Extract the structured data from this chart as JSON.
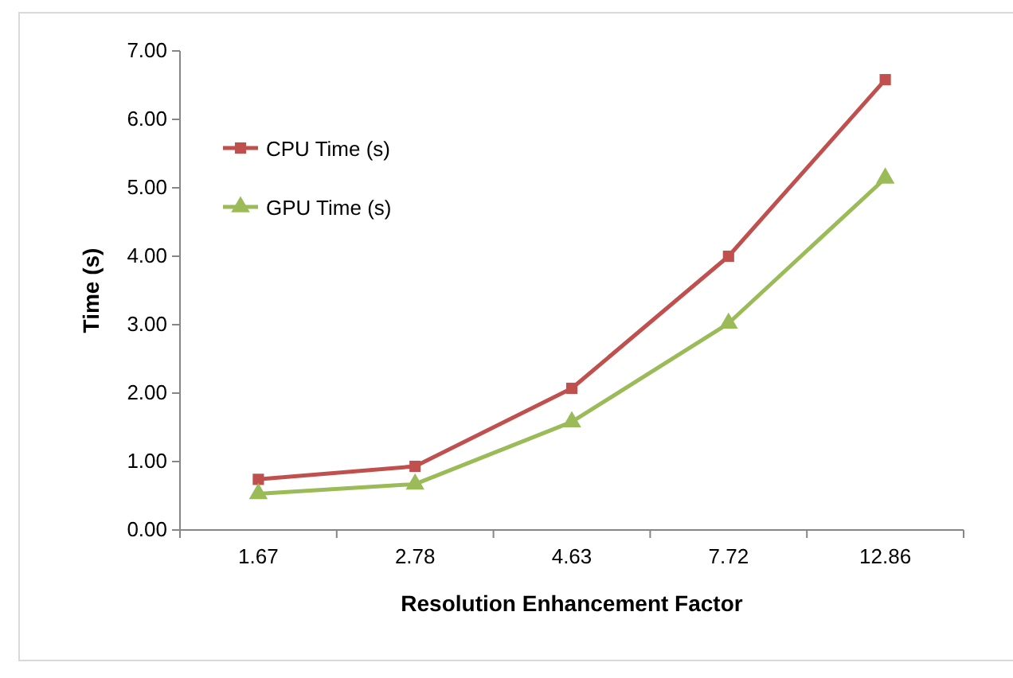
{
  "chart_data": {
    "type": "line",
    "xlabel": "Resolution Enhancement Factor",
    "ylabel": "Time (s)",
    "categories": [
      "1.67",
      "2.78",
      "4.63",
      "7.72",
      "12.86"
    ],
    "ylim": [
      0,
      7
    ],
    "yticks": [
      {
        "value": 0,
        "label": "0.00"
      },
      {
        "value": 1,
        "label": "1.00"
      },
      {
        "value": 2,
        "label": "2.00"
      },
      {
        "value": 3,
        "label": "3.00"
      },
      {
        "value": 4,
        "label": "4.00"
      },
      {
        "value": 5,
        "label": "5.00"
      },
      {
        "value": 6,
        "label": "6.00"
      },
      {
        "value": 7,
        "label": "7.00"
      }
    ],
    "grid": false,
    "legend": "top left",
    "series": [
      {
        "name": "CPU Time (s)",
        "color": "#c0504d",
        "marker": "square",
        "values": [
          0.74,
          0.93,
          2.07,
          4.0,
          6.58
        ]
      },
      {
        "name": "GPU Time (s)",
        "color": "#9bbb59",
        "marker": "triangle",
        "values": [
          0.53,
          0.67,
          1.58,
          3.02,
          5.14
        ]
      }
    ]
  }
}
